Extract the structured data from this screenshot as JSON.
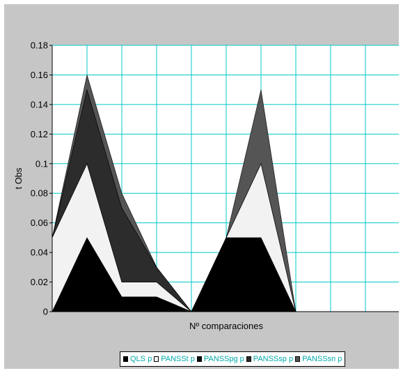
{
  "chart_data": {
    "type": "area",
    "stacked": true,
    "title": "",
    "xlabel": "Nº comparaciones",
    "ylabel": "t Obs",
    "ylim": [
      0,
      0.18
    ],
    "y_ticks": [
      "0",
      "0.02",
      "0.04",
      "0.06",
      "0.08",
      "0.1",
      "0.12",
      "0.14",
      "0.16",
      "0.18"
    ],
    "x_count": 10,
    "grid": true,
    "legend_position": "bottom",
    "plot_background": "#ffffff",
    "grid_color": "#00c8c8",
    "series": [
      {
        "name": "QLS p",
        "color": "#000000",
        "values": [
          0,
          0.05,
          0.01,
          0.01,
          0,
          0.05,
          0.05,
          0,
          0,
          0
        ]
      },
      {
        "name": "PANSSt p",
        "color": "#f2f2f2",
        "values": [
          0.05,
          0.05,
          0.01,
          0.01,
          0,
          0,
          0.05,
          0,
          0,
          0
        ]
      },
      {
        "name": "PANSSpg p",
        "color": "#111111",
        "values": [
          0,
          0,
          0,
          0,
          0,
          0,
          0,
          0,
          0,
          0
        ]
      },
      {
        "name": "PANSSsp p",
        "color": "#2c2c2c",
        "values": [
          0,
          0.05,
          0.05,
          0.01,
          0,
          0,
          0,
          0,
          0,
          0
        ]
      },
      {
        "name": "PANSSsn p",
        "color": "#555555",
        "values": [
          0,
          0.01,
          0.01,
          0,
          0,
          0,
          0.05,
          0,
          0,
          0
        ]
      }
    ]
  }
}
